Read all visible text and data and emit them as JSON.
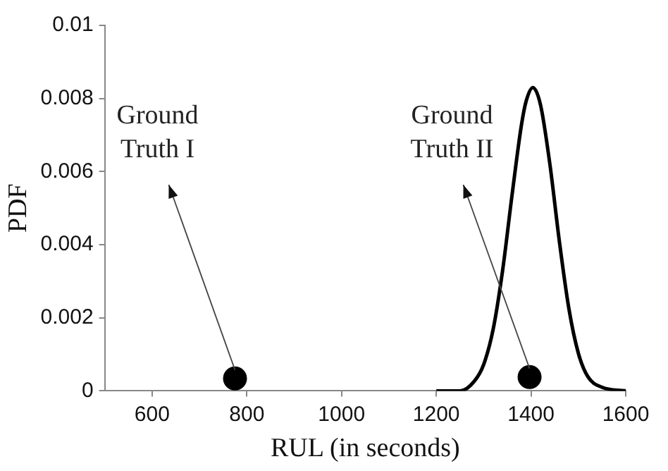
{
  "chart_data": {
    "type": "line",
    "xlabel": "RUL (in seconds)",
    "ylabel": "PDF",
    "xlim": [
      500,
      1600
    ],
    "xticks": [
      600,
      800,
      1000,
      1200,
      1400,
      1600
    ],
    "ylim": [
      0,
      0.01
    ],
    "yticks": [
      0,
      0.002,
      0.004,
      0.006,
      0.008,
      0.01
    ],
    "grid": false,
    "legend": false,
    "series": [
      {
        "type": "line",
        "color": "#000000",
        "marker": "none",
        "x": [
          1200,
          1250,
          1280,
          1300,
          1320,
          1340,
          1360,
          1380,
          1390,
          1404,
          1420,
          1440,
          1460,
          1480,
          1500,
          1520,
          1550,
          1600
        ],
        "values": [
          0,
          0,
          0.00026,
          0.00072,
          0.00168,
          0.00329,
          0.00536,
          0.00729,
          0.00794,
          0.0083,
          0.00783,
          0.00619,
          0.00408,
          0.00225,
          0.00103,
          0.00039,
          0.0001,
          0
        ]
      },
      {
        "type": "scatter",
        "color": "#000000",
        "marker": "circle",
        "x": [
          775,
          1397
        ],
        "values": [
          0.00034,
          0.00038
        ]
      }
    ],
    "annotations": [
      {
        "text": "Ground Truth I",
        "x": 775,
        "y": 0.00034
      },
      {
        "text": "Ground Truth II",
        "x": 1397,
        "y": 0.00038
      }
    ]
  }
}
